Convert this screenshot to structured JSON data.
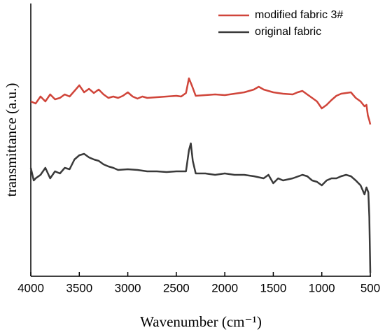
{
  "chart_data": {
    "type": "line",
    "xlabel": "Wavenumber (cm⁻¹)",
    "ylabel": "transmittance (a.u.)",
    "xlim": [
      4000,
      500
    ],
    "xticks": [
      4000,
      3500,
      3000,
      2500,
      2000,
      1500,
      1000,
      500
    ],
    "ylim": [
      0,
      390
    ],
    "legend": "upper right",
    "series": [
      {
        "name": "modified fabric 3#",
        "color": "#d0453a",
        "x": [
          4000,
          3950,
          3900,
          3850,
          3800,
          3750,
          3700,
          3650,
          3600,
          3550,
          3500,
          3450,
          3400,
          3350,
          3300,
          3250,
          3200,
          3150,
          3100,
          3050,
          3000,
          2950,
          2900,
          2850,
          2800,
          2700,
          2600,
          2500,
          2450,
          2400,
          2370,
          2340,
          2300,
          2200,
          2100,
          2000,
          1900,
          1800,
          1700,
          1650,
          1600,
          1500,
          1400,
          1300,
          1250,
          1200,
          1150,
          1100,
          1050,
          1000,
          950,
          900,
          850,
          800,
          750,
          700,
          650,
          600,
          560,
          540,
          525,
          510,
          500
        ],
        "values": [
          250,
          247,
          257,
          250,
          260,
          253,
          255,
          260,
          257,
          265,
          273,
          263,
          268,
          262,
          267,
          260,
          255,
          257,
          255,
          258,
          263,
          257,
          254,
          257,
          255,
          256,
          257,
          258,
          257,
          262,
          283,
          273,
          258,
          259,
          260,
          259,
          261,
          263,
          267,
          271,
          267,
          263,
          261,
          260,
          263,
          265,
          260,
          255,
          250,
          240,
          245,
          252,
          258,
          261,
          262,
          263,
          255,
          250,
          243,
          245,
          230,
          223,
          217
        ]
      },
      {
        "name": "original fabric",
        "color": "#3a3a3a",
        "x": [
          4000,
          3970,
          3950,
          3900,
          3850,
          3800,
          3750,
          3700,
          3650,
          3600,
          3550,
          3500,
          3450,
          3400,
          3350,
          3300,
          3250,
          3200,
          3150,
          3100,
          3000,
          2900,
          2800,
          2700,
          2600,
          2500,
          2400,
          2370,
          2350,
          2330,
          2300,
          2200,
          2100,
          2000,
          1900,
          1800,
          1700,
          1600,
          1550,
          1500,
          1450,
          1400,
          1300,
          1200,
          1150,
          1100,
          1050,
          1000,
          950,
          900,
          850,
          800,
          750,
          700,
          650,
          600,
          560,
          540,
          520,
          510,
          500
        ],
        "values": [
          155,
          137,
          140,
          145,
          155,
          140,
          150,
          147,
          155,
          153,
          167,
          173,
          175,
          170,
          167,
          165,
          160,
          157,
          155,
          152,
          153,
          152,
          150,
          150,
          149,
          150,
          150,
          180,
          190,
          165,
          147,
          147,
          145,
          147,
          145,
          145,
          143,
          140,
          145,
          133,
          140,
          137,
          140,
          145,
          143,
          137,
          135,
          130,
          137,
          140,
          140,
          143,
          145,
          143,
          137,
          130,
          117,
          127,
          120,
          85,
          5
        ]
      }
    ]
  }
}
